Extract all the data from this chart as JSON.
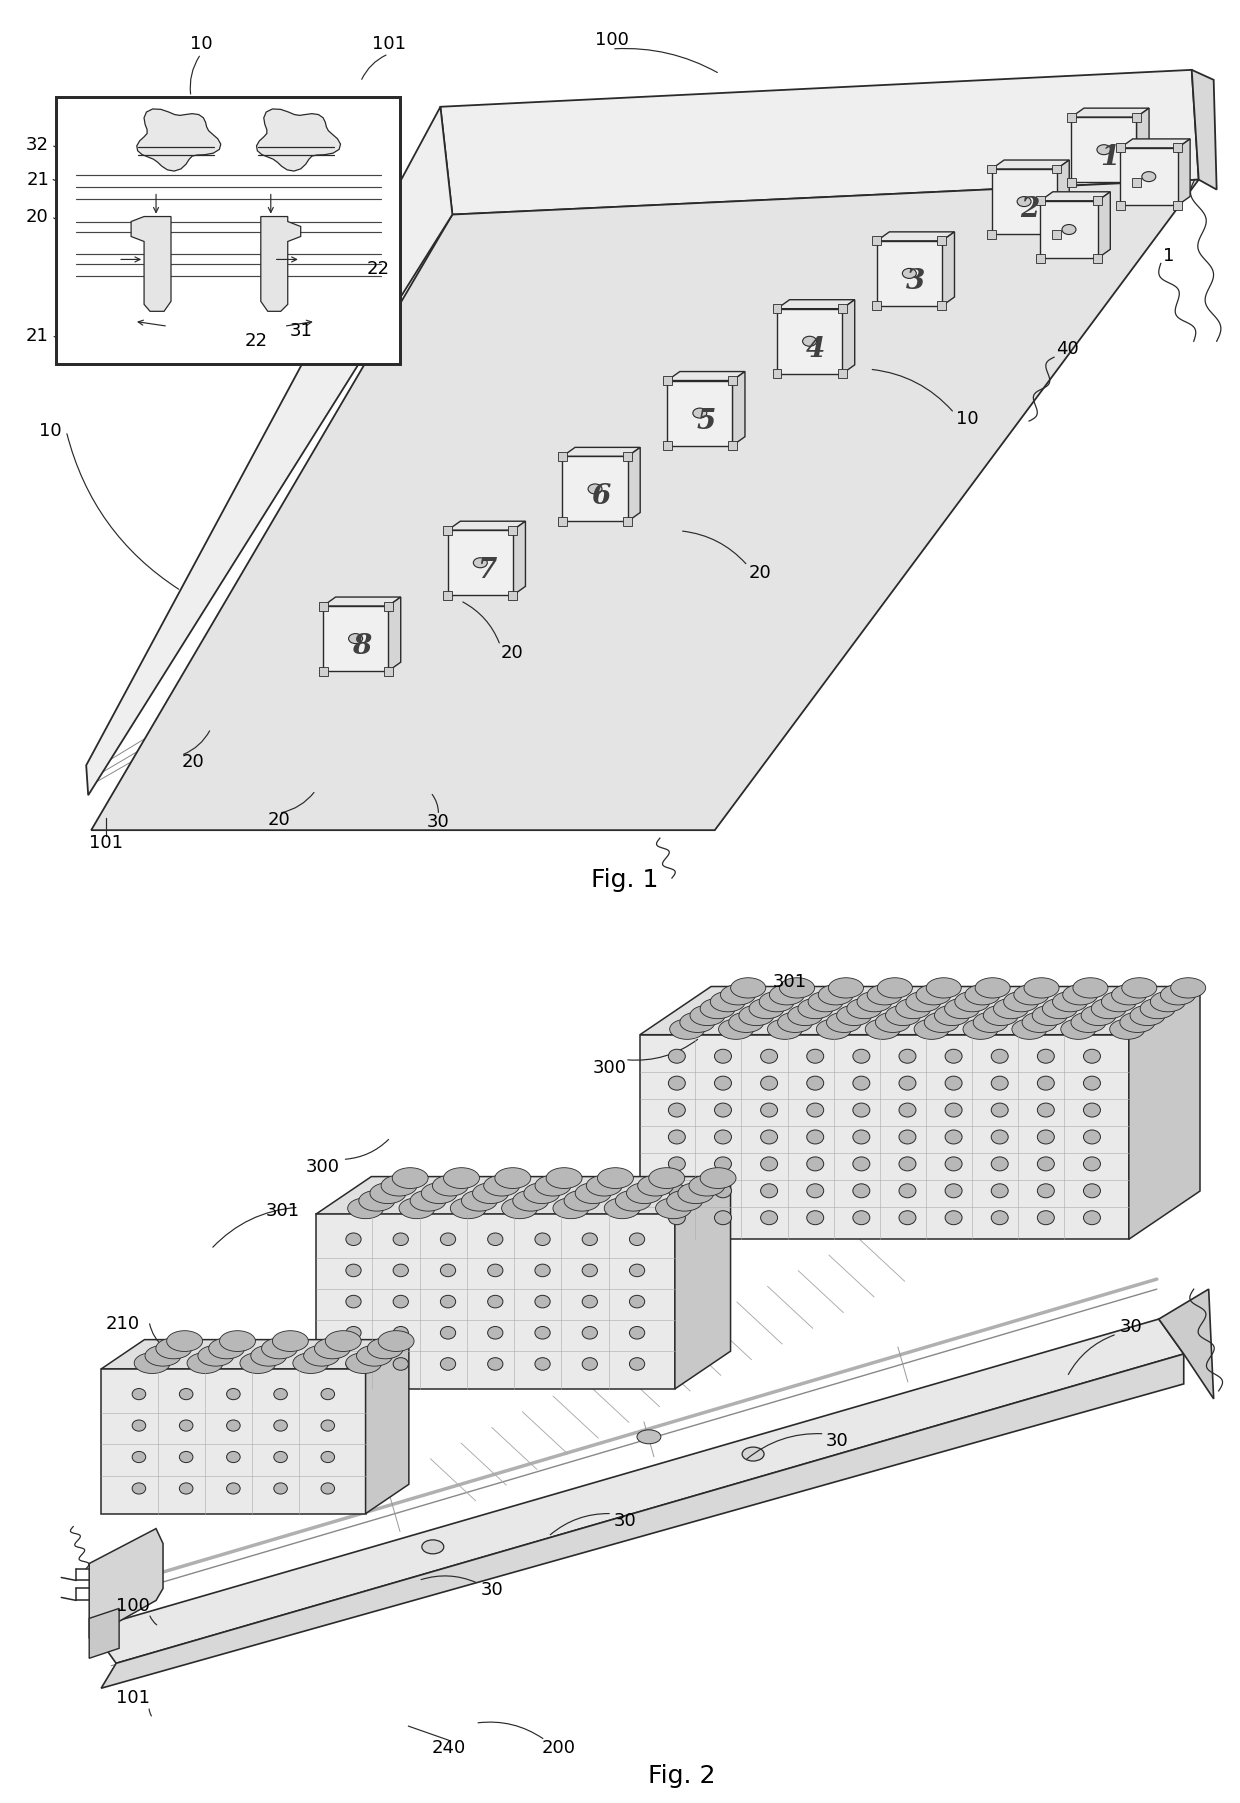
{
  "fig_width": 12.4,
  "fig_height": 18.03,
  "background_color": "#ffffff",
  "line_color": "#2a2a2a",
  "line_width": 1.0,
  "fig1_title": "Fig. 1",
  "fig2_title": "Fig. 2",
  "ref_fontsize": 13,
  "title_fontsize": 18
}
